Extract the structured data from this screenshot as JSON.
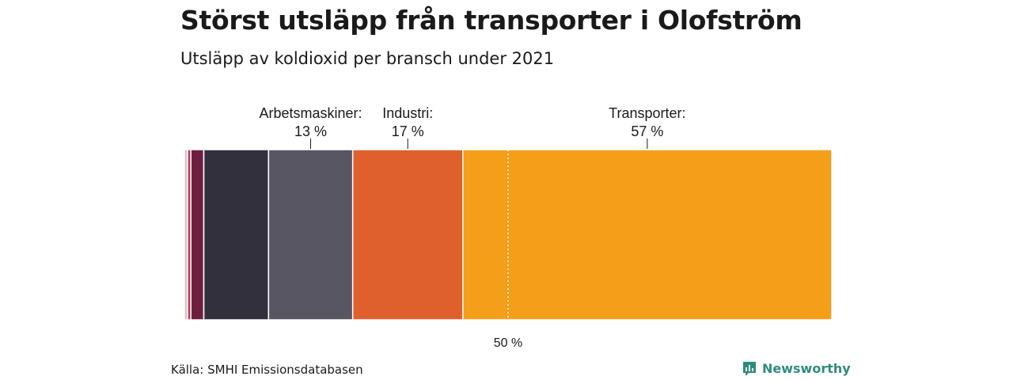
{
  "header": {
    "title": "Störst utsläpp från transporter i Olofström",
    "subtitle": "Utsläpp av koldioxid per bransch under 2021"
  },
  "footer": {
    "source": "Källa: SMHI Emissionsdatabasen",
    "brand": "Newsworthy",
    "brand_color": "#2f8c7c"
  },
  "chart_data": {
    "type": "bar",
    "orientation": "horizontal-stacked",
    "unit": "%",
    "xlim": [
      0,
      100
    ],
    "reference_line": {
      "value": 50,
      "label": "50 %"
    },
    "segments": [
      {
        "value": 0.5,
        "color": "#f2b8c6",
        "label": "",
        "value_label": ""
      },
      {
        "value": 0.5,
        "color": "#a83b5a",
        "label": "",
        "value_label": ""
      },
      {
        "value": 2,
        "color": "#6e1f40",
        "label": "",
        "value_label": ""
      },
      {
        "value": 10,
        "color": "#33303e",
        "label": "",
        "value_label": ""
      },
      {
        "value": 13,
        "color": "#595664",
        "label": "Arbetsmaskiner:",
        "value_label": "13 %"
      },
      {
        "value": 17,
        "color": "#e0602d",
        "label": "Industri:",
        "value_label": "17 %"
      },
      {
        "value": 57,
        "color": "#f59e1a",
        "label": "Transporter:",
        "value_label": "57 %"
      }
    ]
  }
}
